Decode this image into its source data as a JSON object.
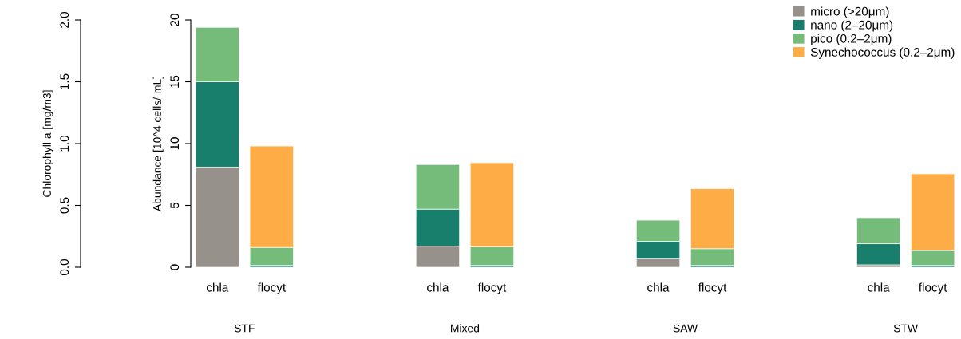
{
  "chart_data": {
    "type": "bar",
    "stacked": true,
    "categories": [
      "chla",
      "flocyt",
      "chla",
      "flocyt",
      "chla",
      "flocyt",
      "chla",
      "flocyt"
    ],
    "ylabel": "Abundance [10^4 cells/ mL]",
    "y2label": "Chlorophyll a [mg/m3]",
    "ylim": [
      0,
      20
    ],
    "yticks": [
      0,
      5,
      10,
      15,
      20
    ],
    "y2lim": [
      0,
      2.0
    ],
    "y2ticks": [
      {
        "value": 0,
        "label": "0.0"
      },
      0.5,
      {
        "value": 1,
        "label": "1.0"
      },
      1.5,
      {
        "value": 2,
        "label": "2.0"
      }
    ],
    "series": [
      {
        "name": "micro (>20μm)",
        "color": "#96928b",
        "axis": "y2",
        "values": [
          0.81,
          null,
          0.17,
          null,
          0.07,
          null,
          0.02,
          null
        ]
      },
      {
        "name": "nano (2–20μm)",
        "color": "#187f6c",
        "axis": "y2",
        "values": [
          0.69,
          null,
          0.3,
          null,
          0.14,
          null,
          0.17,
          null
        ]
      },
      {
        "name": "pico (0.2–2μm)",
        "color": "#75bb79",
        "axis": "y2",
        "values": [
          0.44,
          null,
          0.36,
          null,
          0.17,
          null,
          0.21,
          null
        ]
      },
      {
        "color": "#187f6c",
        "values": [
          null,
          0.15,
          null,
          0.15,
          null,
          0.15,
          null,
          0.15
        ]
      },
      {
        "color": "#75bb79",
        "values": [
          null,
          1.45,
          null,
          1.5,
          null,
          1.35,
          null,
          1.2
        ]
      },
      {
        "name": "Synechococcus (0.2–2μm)",
        "color": "#feac45",
        "values": [
          null,
          8.2,
          null,
          6.8,
          null,
          4.85,
          null,
          6.2
        ]
      }
    ],
    "annotations": [
      "STF",
      "Mixed",
      "SAW",
      "STW"
    ],
    "legend": "top right",
    "grid": false
  }
}
